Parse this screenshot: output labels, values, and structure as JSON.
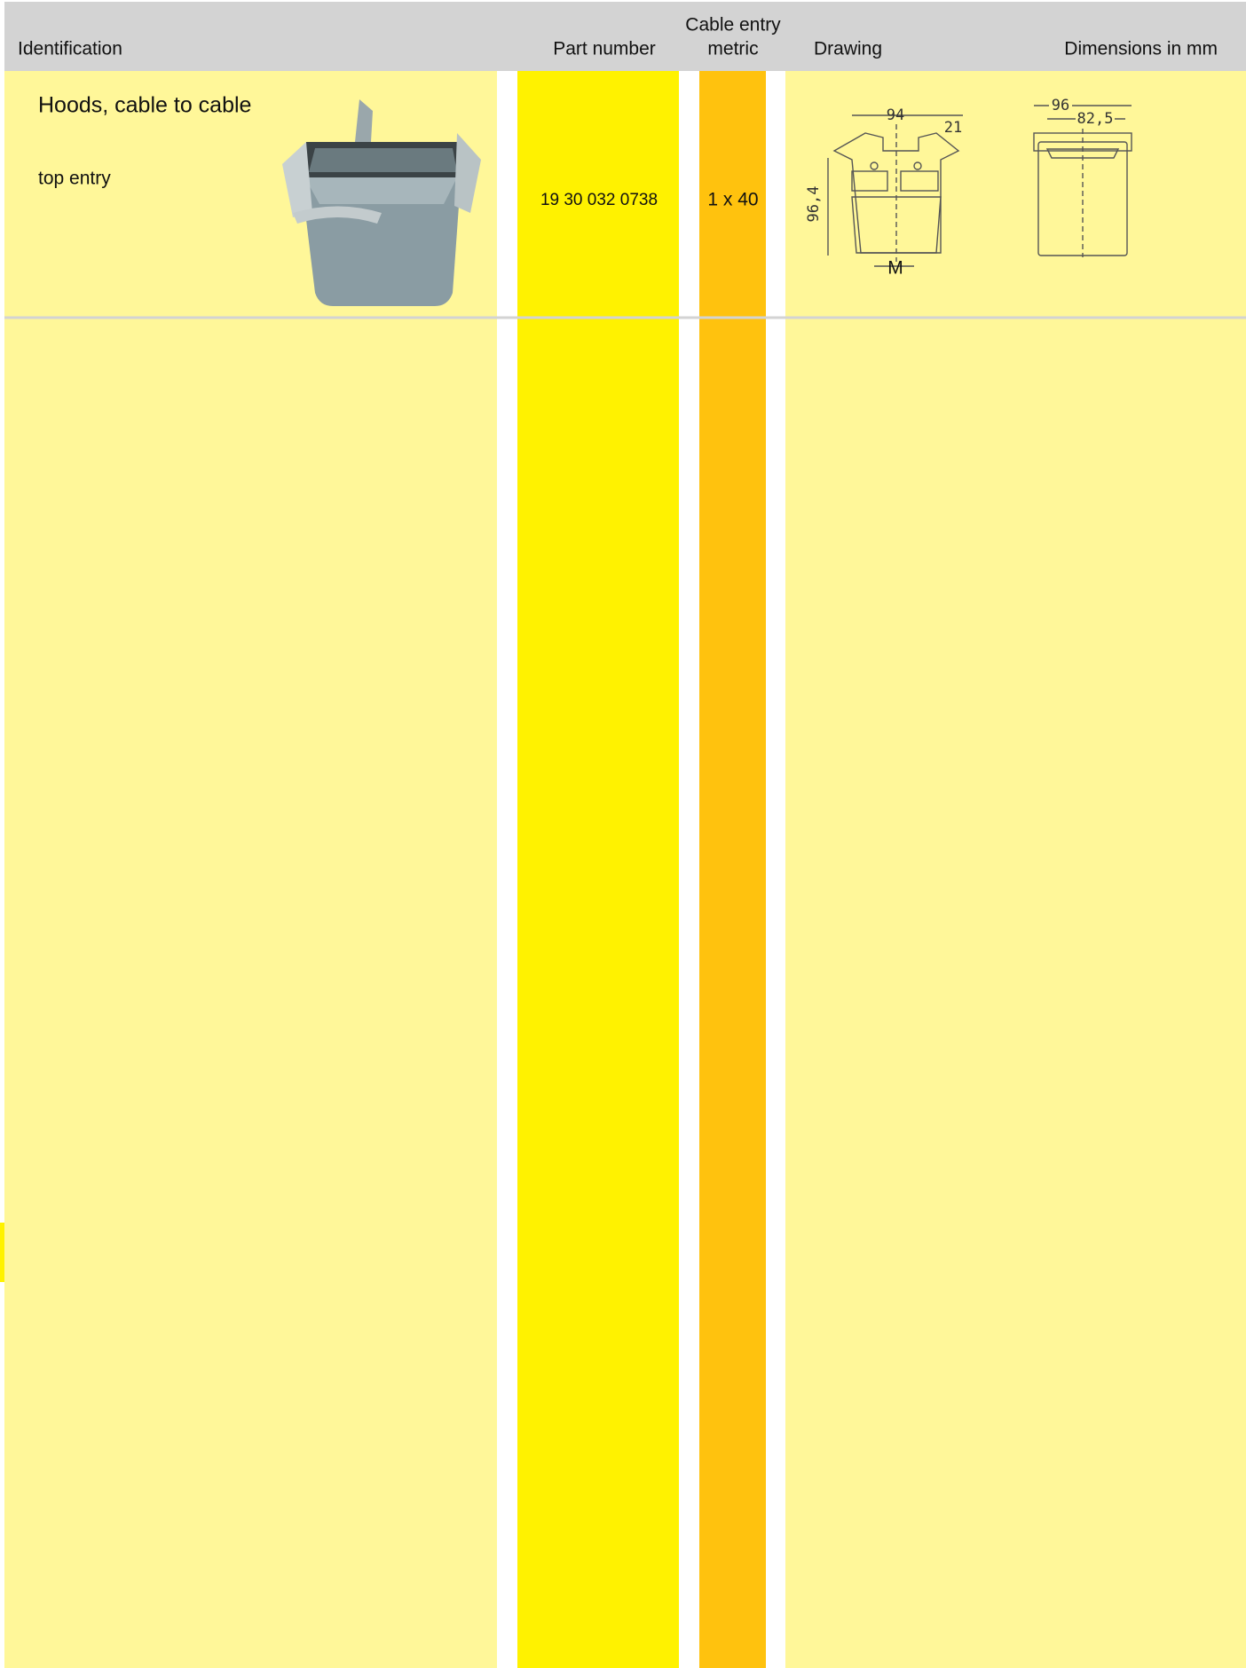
{
  "header": {
    "identification": "Identification",
    "part_number": "Part number",
    "cable_entry": [
      "Cable entry",
      "metric"
    ],
    "drawing": "Drawing",
    "dimensions": "Dimensions in mm"
  },
  "rows": [
    {
      "title": "Hoods, cable to cable",
      "subtitle": "top entry",
      "part_number": "19 30 032 0738",
      "cable_entry": "1 x 40",
      "front_view_labels": [
        "94",
        "21",
        "96,4",
        "M"
      ],
      "side_view_labels": [
        "96",
        "82,5"
      ]
    }
  ]
}
